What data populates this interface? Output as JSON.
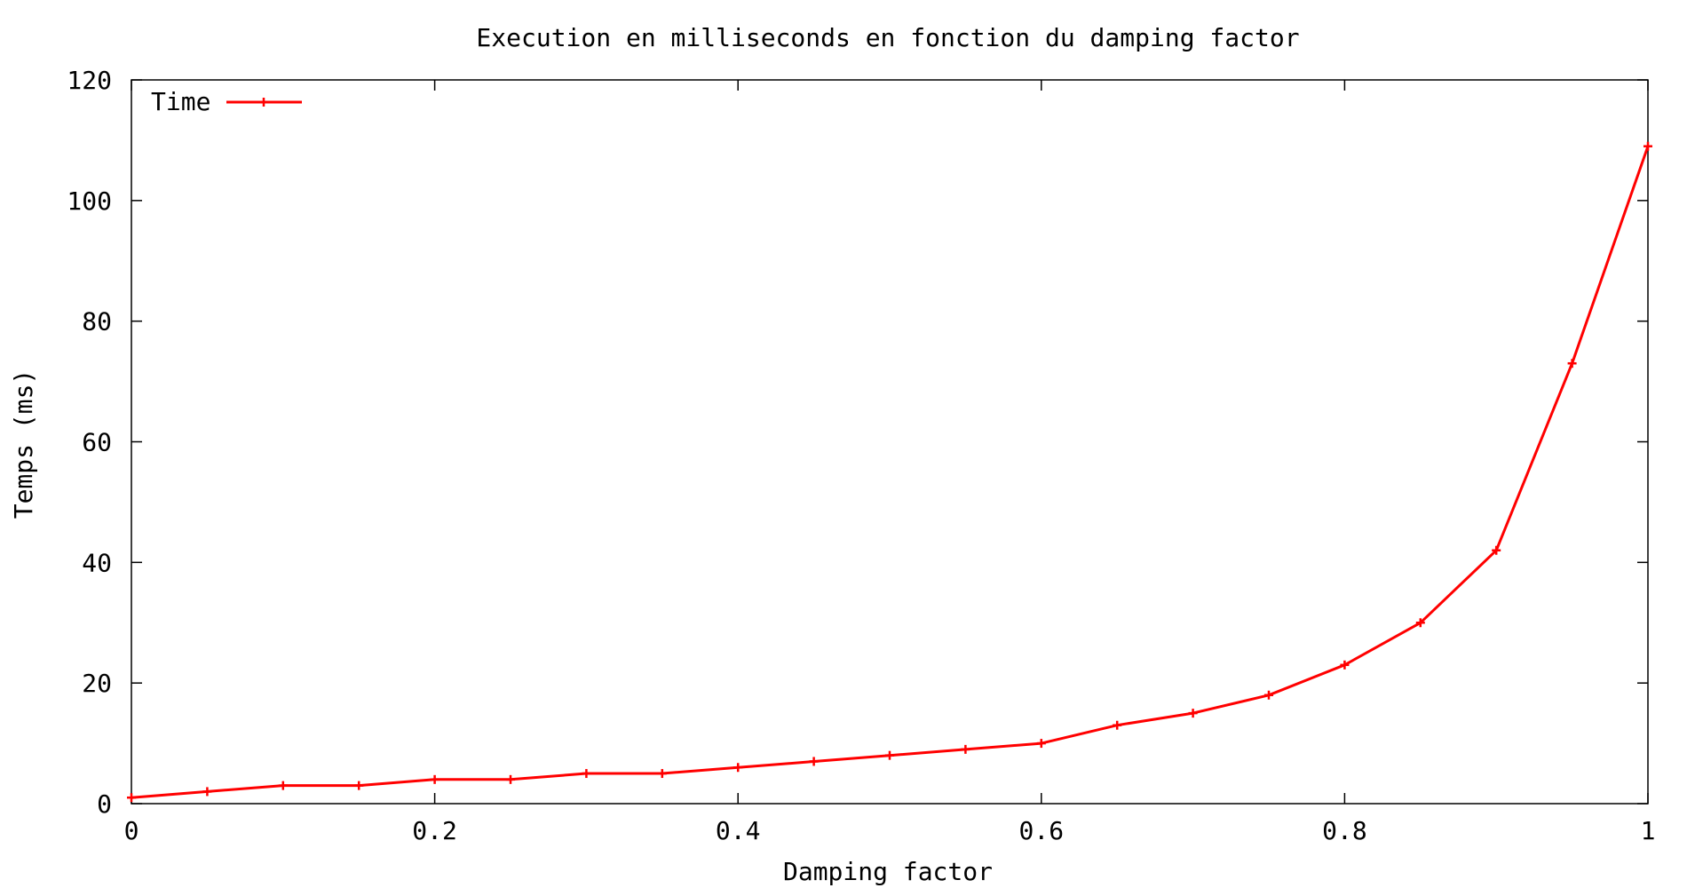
{
  "chart_data": {
    "type": "line",
    "title": "Execution en milliseconds en fonction du damping factor",
    "xlabel": "Damping factor",
    "ylabel": "Temps (ms)",
    "xlim": [
      0,
      1
    ],
    "ylim": [
      0,
      120
    ],
    "x_ticks": [
      0,
      0.2,
      0.4,
      0.6,
      0.8,
      1
    ],
    "x_tick_labels": [
      "0",
      "0.2",
      "0.4",
      "0.6",
      "0.8",
      "1"
    ],
    "y_ticks": [
      0,
      20,
      40,
      60,
      80,
      100,
      120
    ],
    "y_tick_labels": [
      "0",
      "20",
      "40",
      "60",
      "80",
      "100",
      "120"
    ],
    "grid": false,
    "legend_position": "top-left",
    "series": [
      {
        "name": "Time",
        "color": "#ff0000",
        "marker": "plus",
        "x": [
          0,
          0.05,
          0.1,
          0.15,
          0.2,
          0.25,
          0.3,
          0.35,
          0.4,
          0.45,
          0.5,
          0.55,
          0.6,
          0.65,
          0.7,
          0.75,
          0.8,
          0.85,
          0.9,
          0.95,
          1
        ],
        "y": [
          1,
          2,
          3,
          3,
          4,
          4,
          5,
          5,
          6,
          7,
          8,
          9,
          10,
          13,
          15,
          18,
          23,
          30,
          42,
          73,
          109
        ]
      }
    ]
  }
}
